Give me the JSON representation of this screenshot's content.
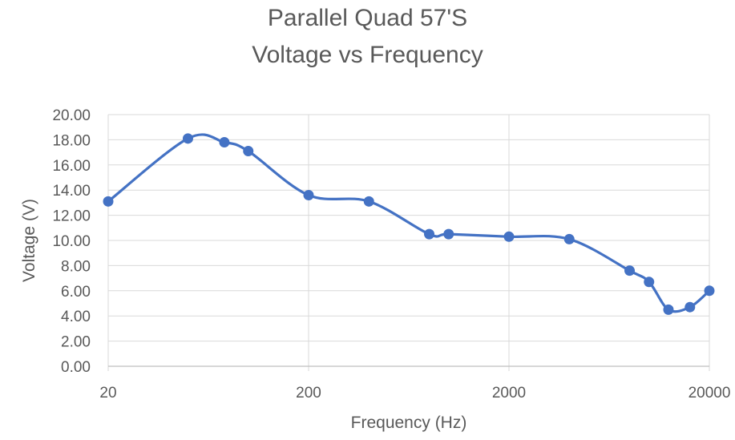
{
  "chart_data": {
    "type": "scatter",
    "title": "Parallel Quad 57'S",
    "subtitle": "Voltage vs Frequency",
    "xlabel": "Frequency (Hz)",
    "ylabel": "Voltage (V)",
    "x_scale": "log",
    "xlim": [
      20,
      20000
    ],
    "ylim": [
      0,
      20
    ],
    "x_ticks": [
      "20",
      "200",
      "2000",
      "20000"
    ],
    "y_ticks": [
      "0.00",
      "2.00",
      "4.00",
      "6.00",
      "8.00",
      "10.00",
      "12.00",
      "14.00",
      "16.00",
      "18.00",
      "20.00"
    ],
    "grid": true,
    "line_style": "smoothed",
    "series": [
      {
        "color": "#4472C4",
        "x": [
          20,
          50,
          76,
          100,
          200,
          400,
          800,
          1000,
          2000,
          4000,
          8000,
          10000,
          12500,
          16000,
          20000
        ],
        "y": [
          13.1,
          18.1,
          17.8,
          17.1,
          13.6,
          13.1,
          10.5,
          10.5,
          10.3,
          10.1,
          7.6,
          6.7,
          4.5,
          4.7,
          6.0
        ]
      }
    ]
  }
}
